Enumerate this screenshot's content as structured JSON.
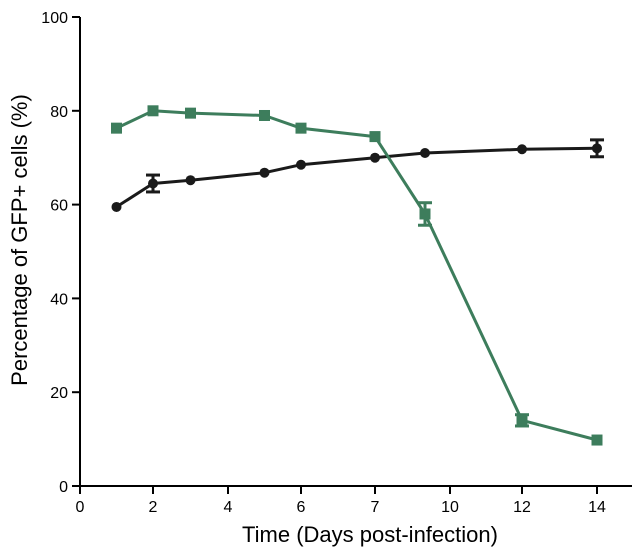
{
  "chart_data": {
    "type": "line",
    "xlabel": "Time (Days post-infection)",
    "ylabel": "Percentage of GFP+ cells (%)",
    "ylim": [
      0,
      100
    ],
    "x_ticks": [
      {
        "label": "0",
        "x": 0
      },
      {
        "label": "2",
        "x": 2
      },
      {
        "label": "4",
        "x": 4
      },
      {
        "label": "6",
        "x": 6
      },
      {
        "label": "7",
        "x": 7
      },
      {
        "label": "10",
        "x": 10
      },
      {
        "label": "12",
        "x": 12
      },
      {
        "label": "14",
        "x": 14
      }
    ],
    "y_ticks": [
      0,
      20,
      40,
      60,
      80,
      100
    ],
    "grid": false,
    "legend": "none",
    "series": [
      {
        "marker": "circle",
        "color": "#1a1a1a",
        "points": [
          {
            "x": 1,
            "y": 59.5,
            "err": 0
          },
          {
            "x": 2,
            "y": 64.5,
            "err": 1.8
          },
          {
            "x": 3,
            "y": 65.2,
            "err": 0
          },
          {
            "x": 5,
            "y": 66.8,
            "err": 0
          },
          {
            "x": 6,
            "y": 68.5,
            "err": 0
          },
          {
            "x": 7,
            "y": 70.0,
            "err": 0
          },
          {
            "x": 9,
            "y": 71.0,
            "err": 0
          },
          {
            "x": 12,
            "y": 71.8,
            "err": 0
          },
          {
            "x": 14,
            "y": 72.0,
            "err": 1.8
          }
        ]
      },
      {
        "marker": "square",
        "color": "#3d7d5c",
        "points": [
          {
            "x": 1,
            "y": 76.3,
            "err": 0
          },
          {
            "x": 2,
            "y": 80.0,
            "err": 0
          },
          {
            "x": 3,
            "y": 79.5,
            "err": 0
          },
          {
            "x": 5,
            "y": 79.0,
            "err": 0
          },
          {
            "x": 6,
            "y": 76.3,
            "err": 0
          },
          {
            "x": 7,
            "y": 74.5,
            "err": 0
          },
          {
            "x": 9,
            "y": 58.0,
            "err": 2.4
          },
          {
            "x": 12,
            "y": 14.0,
            "err": 1.2
          },
          {
            "x": 14,
            "y": 9.8,
            "err": 0
          }
        ]
      }
    ]
  }
}
